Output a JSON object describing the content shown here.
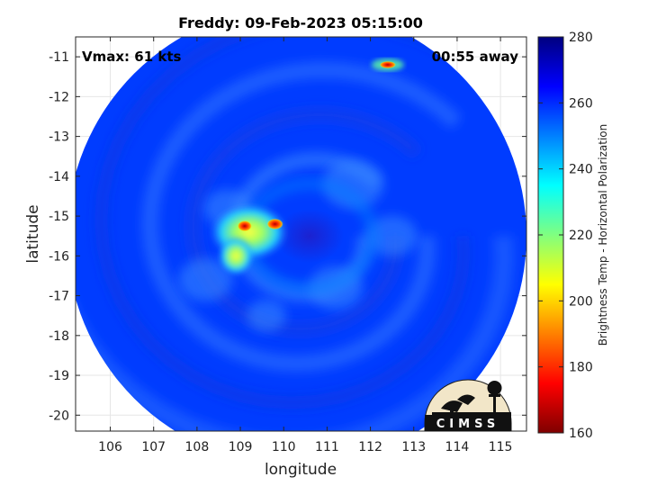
{
  "title": "Freddy: 09-Feb-2023 05:15:00",
  "annotations": {
    "vmax": "Vmax: 61 kts",
    "away": "00:55 away"
  },
  "axes": {
    "xlabel": "longitude",
    "ylabel": "latitude",
    "xlim": [
      105.2,
      115.6
    ],
    "ylim": [
      -20.4,
      -10.5
    ],
    "xticks": [
      106,
      107,
      108,
      109,
      110,
      111,
      112,
      113,
      114,
      115
    ],
    "yticks": [
      -11,
      -12,
      -13,
      -14,
      -15,
      -16,
      -17,
      -18,
      -19,
      -20
    ],
    "grid": true
  },
  "colorbar": {
    "label": "Brightness Temp - Horizontal Polarization",
    "min": 160,
    "max": 280,
    "ticks": [
      280,
      260,
      240,
      220,
      200,
      180,
      160
    ],
    "colormap": "jet",
    "colors": [
      "#7f0000",
      "#ff0000",
      "#ff8000",
      "#ffff00",
      "#80ff80",
      "#00ffff",
      "#0080ff",
      "#0000ff",
      "#00007f"
    ]
  },
  "chart_data": {
    "type": "heatmap",
    "title": "Freddy: 09-Feb-2023 05:15:00",
    "xlabel": "longitude",
    "ylabel": "latitude",
    "xlim": [
      105.2,
      115.6
    ],
    "ylim": [
      -20.4,
      -10.5
    ],
    "value_range": [
      160,
      280
    ],
    "swath": {
      "center_lon": 110.3,
      "center_lat": -15.5,
      "radius_deg": 5.3
    },
    "background_value": 258,
    "storm_center": {
      "lon": 110.6,
      "lat": -15.5
    },
    "features": [
      {
        "name": "eye",
        "lon": 110.6,
        "lat": -15.5,
        "value": 262
      },
      {
        "name": "eyewall",
        "lon": 110.6,
        "lat": -15.5,
        "value": 250
      },
      {
        "name": "convection-west",
        "lon": 109.2,
        "lat": -15.4,
        "value": 230
      },
      {
        "name": "convection-southwest",
        "lon": 108.9,
        "lat": -16.0,
        "value": 238
      },
      {
        "name": "deep-core",
        "lon": 109.8,
        "lat": -15.2,
        "value": 185
      },
      {
        "name": "deep-core-2",
        "lon": 109.1,
        "lat": -15.25,
        "value": 200
      },
      {
        "name": "northeast-cell",
        "lon": 112.4,
        "lat": -11.2,
        "value": 190
      }
    ]
  },
  "logo": {
    "text": "CIMSS"
  }
}
